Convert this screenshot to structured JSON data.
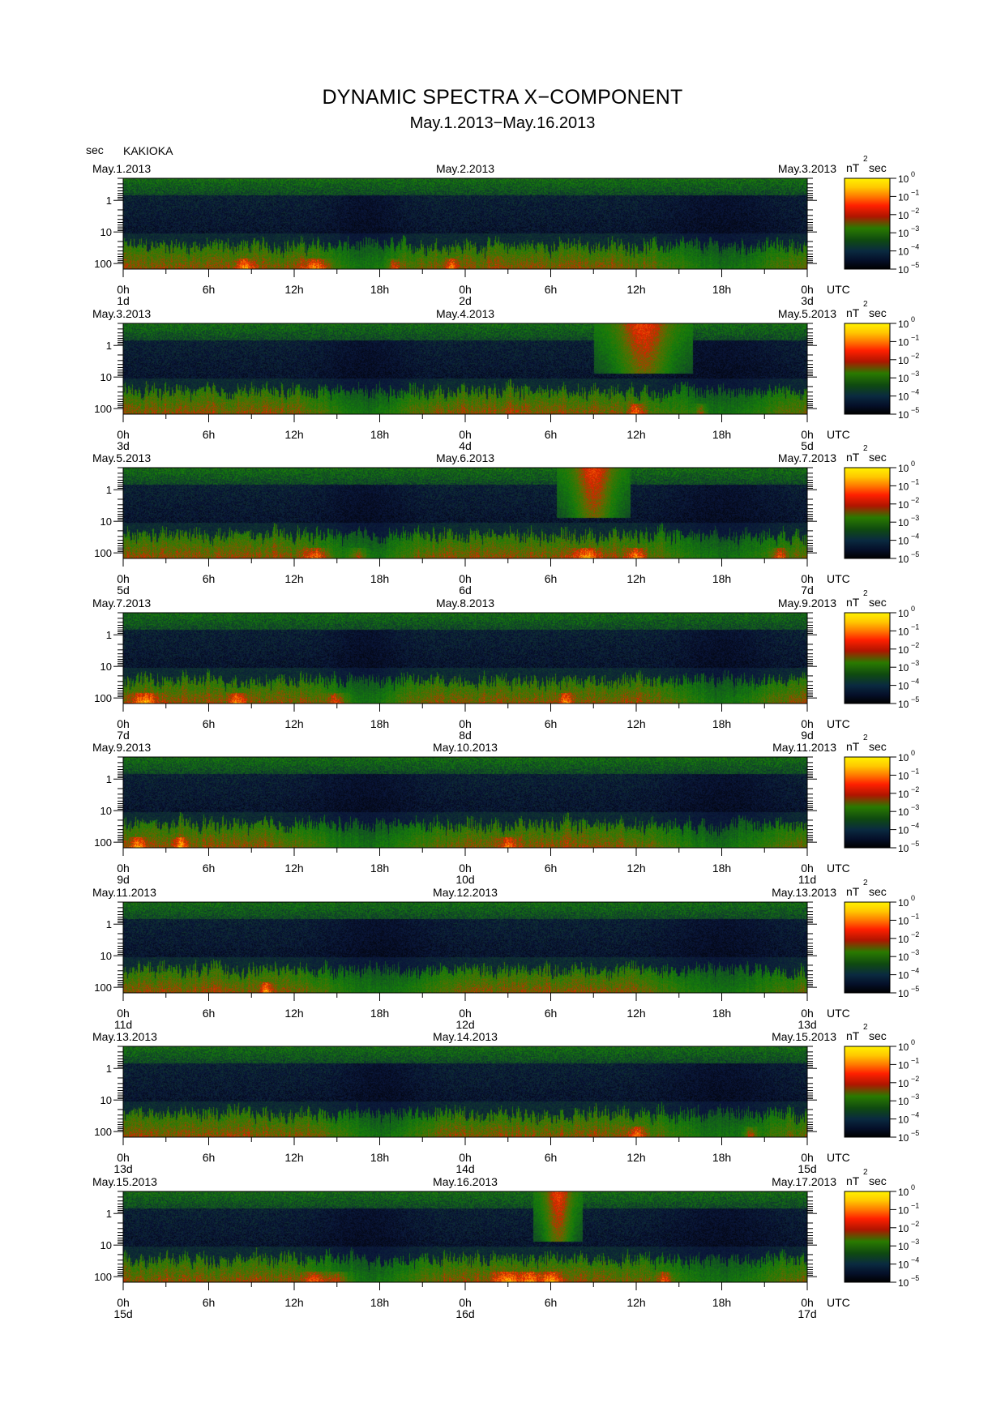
{
  "title": "DYNAMIC SPECTRA X−COMPONENT",
  "subtitle": "May.1.2013−May.16.2013",
  "y_unit_label": "sec",
  "station": "KAKIOKA",
  "time_zone_label": "UTC",
  "colorbar": {
    "unit_label_base": "nT",
    "unit_label_exp": "2",
    "unit_label_suffix": "sec",
    "tick_base": "10",
    "tick_exponents": [
      "0",
      "−1",
      "−2",
      "−3",
      "−4",
      "−5"
    ],
    "colors": [
      "#fff000",
      "#ff9a00",
      "#ff1a00",
      "#1e7a00",
      "#0a1f40",
      "#000000"
    ]
  },
  "chart_data": {
    "type": "heatmap",
    "quantity": "power spectral density",
    "y_axis": {
      "label": "sec",
      "scale": "log",
      "ticks": [
        "1",
        "10",
        "100"
      ]
    },
    "x_axis": {
      "hour_ticks": [
        "0h",
        "6h",
        "12h",
        "18h",
        "0h",
        "6h",
        "12h",
        "18h",
        "0h"
      ]
    },
    "color_scale": {
      "unit": "nT^2 sec",
      "min": "10^-5",
      "max": "10^0",
      "scale": "log"
    },
    "panels": [
      {
        "start_date": "May.1.2013",
        "mid_date": "May.2.2013",
        "end_date": "May.3.2013",
        "day_labels": [
          "1d",
          "2d",
          "3d"
        ],
        "features": {
          "bursts": [
            [
              8.5,
              0.55
            ],
            [
              13.5,
              0.9
            ],
            [
              19,
              0.4
            ],
            [
              23,
              0.35
            ]
          ],
          "quiet": [
            [
              17,
              2.5
            ],
            [
              42,
              4
            ]
          ],
          "mid_events": []
        }
      },
      {
        "start_date": "May.3.2013",
        "mid_date": "May.4.2013",
        "end_date": "May.5.2013",
        "day_labels": [
          "3d",
          "4d",
          "5d"
        ],
        "features": {
          "bursts": [
            [
              36,
              0.4
            ],
            [
              40.5,
              0.35
            ]
          ],
          "quiet": [
            [
              17,
              3
            ],
            [
              42,
              4
            ]
          ],
          "mid_events": [
            [
              36.5,
              2
            ]
          ]
        }
      },
      {
        "start_date": "May.5.2013",
        "mid_date": "May.6.2013",
        "end_date": "May.7.2013",
        "day_labels": [
          "5d",
          "6d",
          "7d"
        ],
        "features": {
          "bursts": [
            [
              13.5,
              0.8
            ],
            [
              16.5,
              0.6
            ],
            [
              32.5,
              1
            ],
            [
              36,
              0.6
            ],
            [
              46,
              0.5
            ]
          ],
          "quiet": [
            [
              17,
              3
            ],
            [
              42,
              4
            ]
          ],
          "mid_events": [
            [
              33,
              1.5
            ]
          ]
        }
      },
      {
        "start_date": "May.7.2013",
        "mid_date": "May.8.2013",
        "end_date": "May.9.2013",
        "day_labels": [
          "7d",
          "8d",
          "9d"
        ],
        "features": {
          "bursts": [
            [
              1.5,
              0.9
            ],
            [
              8,
              0.6
            ],
            [
              15,
              0.7
            ],
            [
              31,
              0.4
            ]
          ],
          "quiet": [
            [
              17,
              2.5
            ],
            [
              42,
              3
            ]
          ],
          "mid_events": []
        }
      },
      {
        "start_date": "May.9.2013",
        "mid_date": "May.10.2013",
        "end_date": "May.11.2013",
        "day_labels": [
          "9d",
          "10d",
          "11d"
        ],
        "features": {
          "bursts": [
            [
              1,
              0.5
            ],
            [
              4,
              0.4
            ],
            [
              27,
              0.5
            ]
          ],
          "quiet": [
            [
              17,
              4
            ],
            [
              42,
              4
            ]
          ],
          "mid_events": []
        }
      },
      {
        "start_date": "May.11.2013",
        "mid_date": "May.12.2013",
        "end_date": "May.13.2013",
        "day_labels": [
          "11d",
          "12d",
          "13d"
        ],
        "features": {
          "bursts": [
            [
              10,
              0.35
            ]
          ],
          "quiet": [
            [
              18,
              4
            ],
            [
              42,
              4
            ]
          ],
          "mid_events": []
        }
      },
      {
        "start_date": "May.13.2013",
        "mid_date": "May.14.2013",
        "end_date": "May.15.2013",
        "day_labels": [
          "13d",
          "14d",
          "15d"
        ],
        "features": {
          "bursts": [
            [
              36,
              0.5
            ],
            [
              44,
              0.4
            ]
          ],
          "quiet": [
            [
              18,
              3
            ],
            [
              42,
              4
            ]
          ],
          "mid_events": []
        }
      },
      {
        "start_date": "May.15.2013",
        "mid_date": "May.16.2013",
        "end_date": "May.17.2013",
        "day_labels": [
          "15d",
          "16d",
          "17d"
        ],
        "features": {
          "bursts": [
            [
              13.5,
              1
            ],
            [
              15,
              0.8
            ],
            [
              27,
              1
            ],
            [
              28.5,
              0.9
            ],
            [
              30,
              0.7
            ],
            [
              38,
              0.5
            ]
          ],
          "quiet": [
            [
              17,
              3.5
            ],
            [
              42,
              4
            ]
          ],
          "mid_events": [
            [
              30.5,
              1
            ]
          ]
        }
      }
    ]
  }
}
